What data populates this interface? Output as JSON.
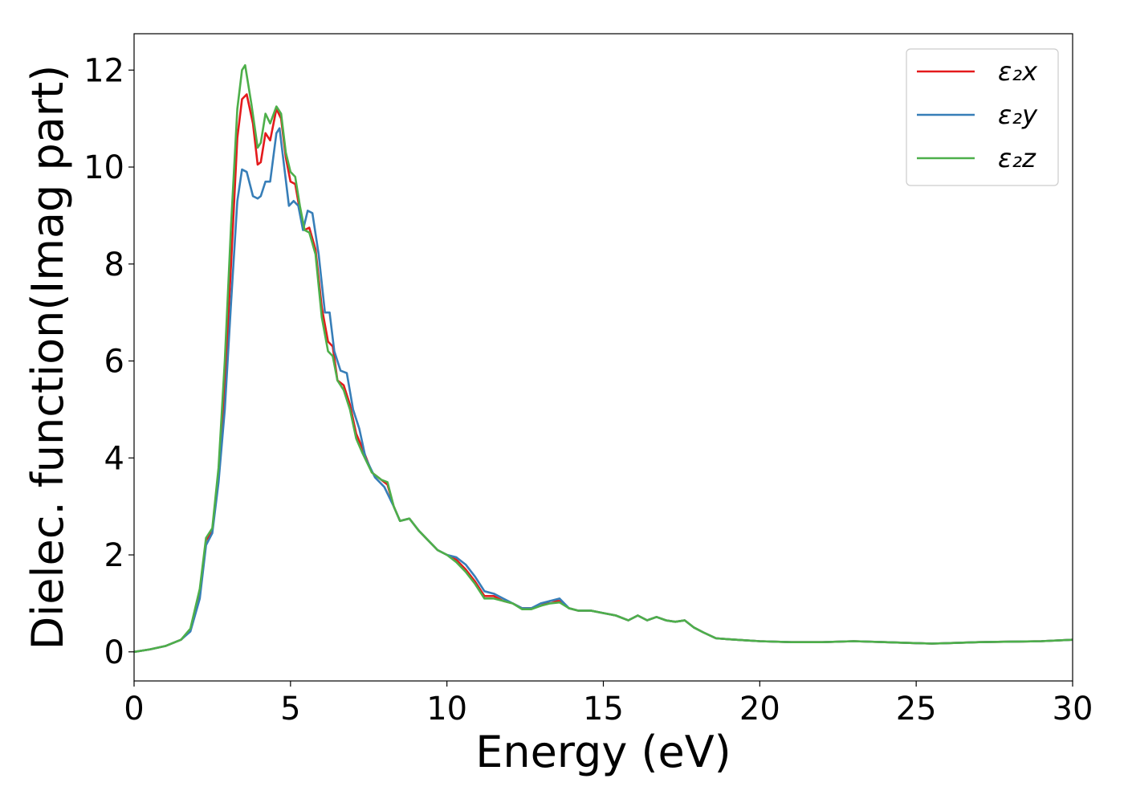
{
  "chart_data": {
    "type": "line",
    "xlabel": "Energy (eV)",
    "ylabel": "Dielec. function(Imag part)",
    "xlim": [
      0,
      30
    ],
    "ylim": [
      -0.6,
      12.75
    ],
    "xticks": [
      "0",
      "5",
      "10",
      "15",
      "20",
      "25",
      "30"
    ],
    "yticks": [
      "0",
      "2",
      "4",
      "6",
      "8",
      "10",
      "12"
    ],
    "grid": false,
    "legend_position": "top-right",
    "series": [
      {
        "name": "ε₂x",
        "color": "#e41a1c",
        "points": [
          [
            0,
            0
          ],
          [
            0.5,
            0.05
          ],
          [
            1,
            0.12
          ],
          [
            1.5,
            0.25
          ],
          [
            1.8,
            0.45
          ],
          [
            2.1,
            1.2
          ],
          [
            2.3,
            2.3
          ],
          [
            2.5,
            2.5
          ],
          [
            2.7,
            3.6
          ],
          [
            2.9,
            5.5
          ],
          [
            3.1,
            8
          ],
          [
            3.3,
            10.6
          ],
          [
            3.45,
            11.4
          ],
          [
            3.6,
            11.5
          ],
          [
            3.8,
            10.9
          ],
          [
            3.95,
            10.05
          ],
          [
            4.05,
            10.1
          ],
          [
            4.2,
            10.7
          ],
          [
            4.35,
            10.55
          ],
          [
            4.55,
            11.2
          ],
          [
            4.7,
            11.0
          ],
          [
            4.85,
            10.2
          ],
          [
            5.0,
            9.7
          ],
          [
            5.15,
            9.65
          ],
          [
            5.3,
            9.1
          ],
          [
            5.45,
            8.7
          ],
          [
            5.6,
            8.75
          ],
          [
            5.8,
            8.3
          ],
          [
            6.0,
            7.1
          ],
          [
            6.2,
            6.4
          ],
          [
            6.35,
            6.3
          ],
          [
            6.5,
            5.6
          ],
          [
            6.7,
            5.5
          ],
          [
            6.9,
            5.1
          ],
          [
            7.1,
            4.5
          ],
          [
            7.3,
            4.2
          ],
          [
            7.6,
            3.7
          ],
          [
            7.9,
            3.55
          ],
          [
            8.1,
            3.45
          ],
          [
            8.3,
            3.0
          ],
          [
            8.5,
            2.7
          ],
          [
            8.8,
            2.75
          ],
          [
            9.1,
            2.5
          ],
          [
            9.4,
            2.3
          ],
          [
            9.7,
            2.1
          ],
          [
            10.0,
            2.0
          ],
          [
            10.3,
            1.9
          ],
          [
            10.6,
            1.7
          ],
          [
            10.9,
            1.45
          ],
          [
            11.2,
            1.15
          ],
          [
            11.5,
            1.15
          ],
          [
            11.8,
            1.05
          ],
          [
            12.1,
            1.0
          ],
          [
            12.4,
            0.9
          ],
          [
            12.7,
            0.9
          ],
          [
            13.0,
            0.95
          ],
          [
            13.3,
            1.05
          ],
          [
            13.6,
            1.05
          ],
          [
            13.9,
            0.9
          ],
          [
            14.2,
            0.85
          ],
          [
            14.6,
            0.85
          ],
          [
            15.0,
            0.8
          ],
          [
            15.4,
            0.75
          ],
          [
            15.8,
            0.65
          ],
          [
            16.1,
            0.75
          ],
          [
            16.4,
            0.65
          ],
          [
            16.7,
            0.72
          ],
          [
            17.0,
            0.65
          ],
          [
            17.3,
            0.62
          ],
          [
            17.6,
            0.65
          ],
          [
            17.9,
            0.5
          ],
          [
            18.2,
            0.4
          ],
          [
            18.6,
            0.28
          ],
          [
            19.0,
            0.26
          ],
          [
            19.5,
            0.24
          ],
          [
            20,
            0.22
          ],
          [
            21,
            0.2
          ],
          [
            22,
            0.2
          ],
          [
            23,
            0.22
          ],
          [
            24,
            0.2
          ],
          [
            25,
            0.18
          ],
          [
            25.5,
            0.17
          ],
          [
            26,
            0.18
          ],
          [
            27,
            0.2
          ],
          [
            28,
            0.21
          ],
          [
            29,
            0.22
          ],
          [
            30,
            0.25
          ]
        ]
      },
      {
        "name": "ε₂y",
        "color": "#377eb8",
        "points": [
          [
            0,
            0
          ],
          [
            0.5,
            0.05
          ],
          [
            1,
            0.12
          ],
          [
            1.5,
            0.25
          ],
          [
            1.8,
            0.42
          ],
          [
            2.1,
            1.1
          ],
          [
            2.3,
            2.2
          ],
          [
            2.5,
            2.45
          ],
          [
            2.7,
            3.5
          ],
          [
            2.9,
            5.0
          ],
          [
            3.1,
            7.2
          ],
          [
            3.3,
            9.3
          ],
          [
            3.45,
            9.95
          ],
          [
            3.6,
            9.9
          ],
          [
            3.8,
            9.4
          ],
          [
            3.95,
            9.35
          ],
          [
            4.05,
            9.4
          ],
          [
            4.2,
            9.7
          ],
          [
            4.35,
            9.7
          ],
          [
            4.55,
            10.7
          ],
          [
            4.65,
            10.8
          ],
          [
            4.8,
            10.0
          ],
          [
            4.95,
            9.2
          ],
          [
            5.1,
            9.3
          ],
          [
            5.25,
            9.2
          ],
          [
            5.4,
            8.7
          ],
          [
            5.55,
            9.1
          ],
          [
            5.7,
            9.05
          ],
          [
            5.9,
            8.2
          ],
          [
            6.1,
            7.0
          ],
          [
            6.25,
            7.0
          ],
          [
            6.4,
            6.2
          ],
          [
            6.6,
            5.8
          ],
          [
            6.8,
            5.75
          ],
          [
            7.0,
            5.0
          ],
          [
            7.2,
            4.6
          ],
          [
            7.4,
            4.0
          ],
          [
            7.7,
            3.6
          ],
          [
            8.0,
            3.4
          ],
          [
            8.3,
            3.0
          ],
          [
            8.5,
            2.7
          ],
          [
            8.8,
            2.75
          ],
          [
            9.1,
            2.5
          ],
          [
            9.4,
            2.3
          ],
          [
            9.7,
            2.1
          ],
          [
            10.0,
            2.0
          ],
          [
            10.3,
            1.95
          ],
          [
            10.6,
            1.8
          ],
          [
            10.9,
            1.55
          ],
          [
            11.2,
            1.25
          ],
          [
            11.5,
            1.2
          ],
          [
            11.8,
            1.1
          ],
          [
            12.1,
            1.0
          ],
          [
            12.4,
            0.9
          ],
          [
            12.7,
            0.9
          ],
          [
            13.0,
            1.0
          ],
          [
            13.3,
            1.05
          ],
          [
            13.6,
            1.1
          ],
          [
            13.9,
            0.9
          ],
          [
            14.2,
            0.85
          ],
          [
            14.6,
            0.85
          ],
          [
            15.0,
            0.8
          ],
          [
            15.4,
            0.75
          ],
          [
            15.8,
            0.65
          ],
          [
            16.1,
            0.75
          ],
          [
            16.4,
            0.65
          ],
          [
            16.7,
            0.72
          ],
          [
            17.0,
            0.65
          ],
          [
            17.3,
            0.62
          ],
          [
            17.6,
            0.65
          ],
          [
            17.9,
            0.5
          ],
          [
            18.2,
            0.4
          ],
          [
            18.6,
            0.28
          ],
          [
            19.0,
            0.26
          ],
          [
            19.5,
            0.24
          ],
          [
            20,
            0.22
          ],
          [
            21,
            0.2
          ],
          [
            22,
            0.2
          ],
          [
            23,
            0.22
          ],
          [
            24,
            0.2
          ],
          [
            25,
            0.18
          ],
          [
            25.5,
            0.17
          ],
          [
            26,
            0.18
          ],
          [
            27,
            0.2
          ],
          [
            28,
            0.21
          ],
          [
            29,
            0.22
          ],
          [
            30,
            0.25
          ]
        ]
      },
      {
        "name": "ε₂z",
        "color": "#4daf4a",
        "points": [
          [
            0,
            0
          ],
          [
            0.5,
            0.05
          ],
          [
            1,
            0.12
          ],
          [
            1.5,
            0.25
          ],
          [
            1.8,
            0.48
          ],
          [
            2.1,
            1.3
          ],
          [
            2.3,
            2.35
          ],
          [
            2.5,
            2.55
          ],
          [
            2.7,
            3.8
          ],
          [
            2.9,
            6.0
          ],
          [
            3.1,
            8.8
          ],
          [
            3.3,
            11.2
          ],
          [
            3.45,
            12.0
          ],
          [
            3.55,
            12.1
          ],
          [
            3.75,
            11.3
          ],
          [
            3.95,
            10.4
          ],
          [
            4.05,
            10.5
          ],
          [
            4.2,
            11.1
          ],
          [
            4.35,
            10.9
          ],
          [
            4.55,
            11.25
          ],
          [
            4.7,
            11.1
          ],
          [
            4.85,
            10.3
          ],
          [
            5.0,
            9.9
          ],
          [
            5.15,
            9.8
          ],
          [
            5.3,
            9.2
          ],
          [
            5.45,
            8.7
          ],
          [
            5.6,
            8.65
          ],
          [
            5.8,
            8.2
          ],
          [
            6.0,
            6.9
          ],
          [
            6.2,
            6.2
          ],
          [
            6.35,
            6.1
          ],
          [
            6.5,
            5.6
          ],
          [
            6.7,
            5.4
          ],
          [
            6.9,
            5.0
          ],
          [
            7.1,
            4.4
          ],
          [
            7.3,
            4.1
          ],
          [
            7.6,
            3.7
          ],
          [
            7.9,
            3.55
          ],
          [
            8.1,
            3.5
          ],
          [
            8.3,
            3.0
          ],
          [
            8.5,
            2.7
          ],
          [
            8.8,
            2.75
          ],
          [
            9.1,
            2.5
          ],
          [
            9.4,
            2.3
          ],
          [
            9.7,
            2.1
          ],
          [
            10.0,
            2.0
          ],
          [
            10.3,
            1.85
          ],
          [
            10.6,
            1.65
          ],
          [
            10.9,
            1.4
          ],
          [
            11.2,
            1.1
          ],
          [
            11.5,
            1.1
          ],
          [
            11.8,
            1.05
          ],
          [
            12.1,
            1.0
          ],
          [
            12.4,
            0.88
          ],
          [
            12.7,
            0.88
          ],
          [
            13.0,
            0.95
          ],
          [
            13.3,
            1.0
          ],
          [
            13.6,
            1.02
          ],
          [
            13.9,
            0.9
          ],
          [
            14.2,
            0.85
          ],
          [
            14.6,
            0.85
          ],
          [
            15.0,
            0.8
          ],
          [
            15.4,
            0.75
          ],
          [
            15.8,
            0.65
          ],
          [
            16.1,
            0.75
          ],
          [
            16.4,
            0.65
          ],
          [
            16.7,
            0.72
          ],
          [
            17.0,
            0.65
          ],
          [
            17.3,
            0.62
          ],
          [
            17.6,
            0.65
          ],
          [
            17.9,
            0.5
          ],
          [
            18.2,
            0.4
          ],
          [
            18.6,
            0.28
          ],
          [
            19.0,
            0.26
          ],
          [
            19.5,
            0.24
          ],
          [
            20,
            0.22
          ],
          [
            21,
            0.2
          ],
          [
            22,
            0.2
          ],
          [
            23,
            0.22
          ],
          [
            24,
            0.2
          ],
          [
            25,
            0.18
          ],
          [
            25.5,
            0.17
          ],
          [
            26,
            0.18
          ],
          [
            27,
            0.2
          ],
          [
            28,
            0.21
          ],
          [
            29,
            0.22
          ],
          [
            30,
            0.25
          ]
        ]
      }
    ]
  }
}
